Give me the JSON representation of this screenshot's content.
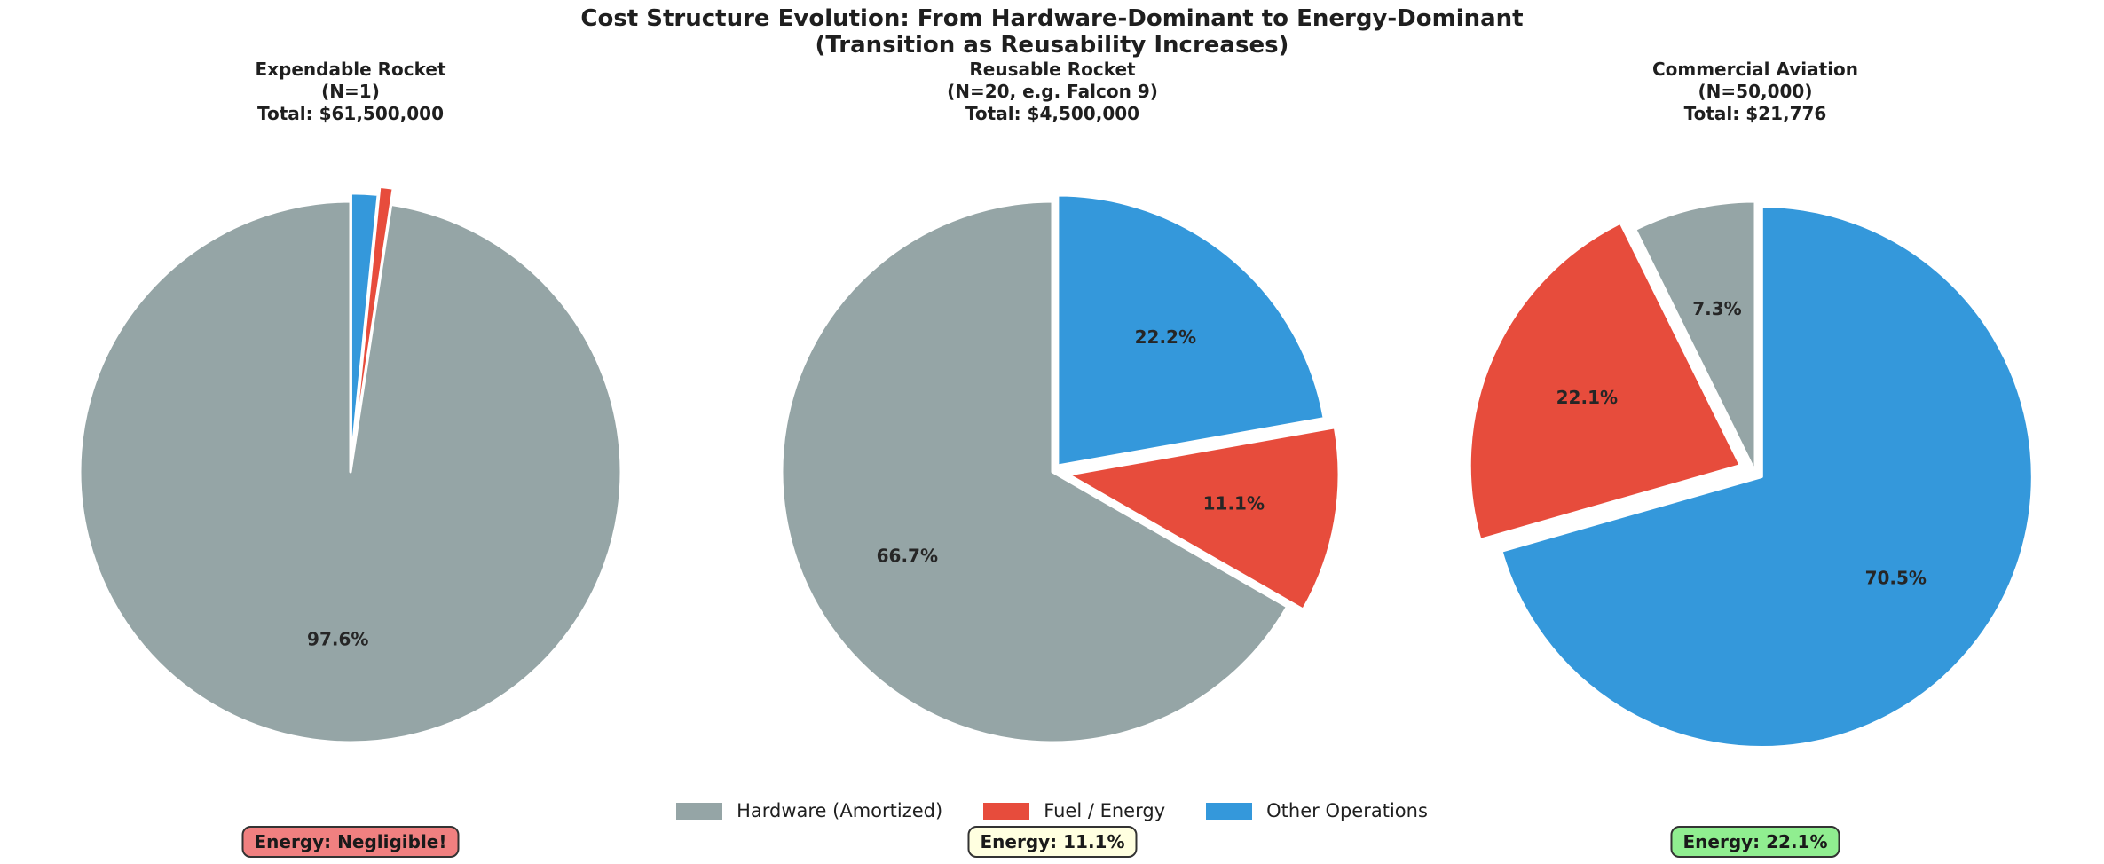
{
  "figure": {
    "suptitle_line1": "Cost Structure Evolution: From Hardware-Dominant to Energy-Dominant",
    "suptitle_line2": "(Transition as Reusability Increases)"
  },
  "legend": {
    "items": [
      {
        "label": "Hardware (Amortized)",
        "color": "#95a5a6"
      },
      {
        "label": "Fuel / Energy",
        "color": "#e74c3c"
      },
      {
        "label": "Other Operations",
        "color": "#3498db"
      }
    ]
  },
  "annotations": [
    {
      "text": "Energy: Negligible!",
      "bg": "#f08080"
    },
    {
      "text": "Energy: 11.1%",
      "bg": "#ffffe0"
    },
    {
      "text": "Energy: 22.1%",
      "bg": "#90ee90"
    }
  ],
  "chart_data": [
    {
      "type": "pie",
      "title_line1": "Expendable Rocket",
      "title_line2": "(N=1)",
      "title_line3": "Total: $61,500,000",
      "total": "$61,500,000",
      "categories": [
        "Hardware (Amortized)",
        "Fuel / Energy",
        "Other Operations"
      ],
      "values_pct": [
        97.6,
        0.8,
        1.6
      ],
      "labels": [
        "97.6%",
        null,
        null
      ],
      "colors": [
        "#95a5a6",
        "#e74c3c",
        "#3498db"
      ],
      "explode": [
        0,
        0.06,
        0.03
      ],
      "start_angle": 90,
      "counterclockwise": true,
      "legend_position": "bottom-center"
    },
    {
      "type": "pie",
      "title_line1": "Reusable Rocket",
      "title_line2": "(N=20, e.g. Falcon 9)",
      "title_line3": "Total: $4,500,000",
      "total": "$4,500,000",
      "categories": [
        "Hardware (Amortized)",
        "Fuel / Energy",
        "Other Operations"
      ],
      "values_pct": [
        66.7,
        11.1,
        22.2
      ],
      "labels": [
        "66.7%",
        "11.1%",
        "22.2%"
      ],
      "colors": [
        "#95a5a6",
        "#e74c3c",
        "#3498db"
      ],
      "explode": [
        0,
        0.06,
        0.03
      ],
      "start_angle": 90,
      "counterclockwise": true,
      "legend_position": "bottom-center"
    },
    {
      "type": "pie",
      "title_line1": "Commercial Aviation",
      "title_line2": "(N=50,000)",
      "title_line3": "Total: $21,776",
      "total": "$21,776",
      "categories": [
        "Hardware (Amortized)",
        "Fuel / Energy",
        "Other Operations"
      ],
      "values_pct": [
        7.3,
        22.1,
        70.5
      ],
      "labels": [
        "7.3%",
        "22.1%",
        "70.5%"
      ],
      "colors": [
        "#95a5a6",
        "#e74c3c",
        "#3498db"
      ],
      "explode": [
        0,
        0.06,
        0.03
      ],
      "start_angle": 90,
      "counterclockwise": true,
      "legend_position": "bottom-center"
    }
  ]
}
